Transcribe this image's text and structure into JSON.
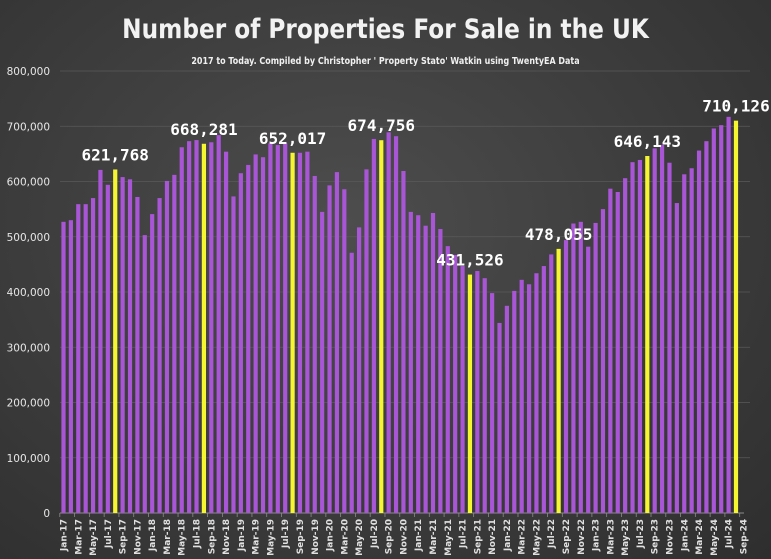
{
  "chart_data": {
    "type": "bar",
    "title": "Number of Properties For Sale in the UK",
    "subtitle": "2017 to Today. Compiled by Christopher ' Property Stato' Watkin using TwentyEA Data",
    "xlabel": "",
    "ylabel": "",
    "ylim": [
      0,
      800000
    ],
    "yticks": [
      "0",
      "100,000",
      "200,000",
      "300,000",
      "400,000",
      "500,000",
      "600,000",
      "700,000",
      "800,000"
    ],
    "ytick_values": [
      0,
      100000,
      200000,
      300000,
      400000,
      500000,
      600000,
      700000,
      800000
    ],
    "grid": true,
    "colors": {
      "default": "#a855d6",
      "highlight": "#f5f532"
    },
    "xtick_labels": [
      "Jan-17",
      "Mar-17",
      "May-17",
      "Jul-17",
      "Sep-17",
      "Nov-17",
      "Jan-18",
      "Mar-18",
      "May-18",
      "Jul-18",
      "Sep-18",
      "Nov-18",
      "Jan-19",
      "Mar-19",
      "May-19",
      "Jul-19",
      "Sep-19",
      "Nov-19",
      "Jan-20",
      "Mar-20",
      "May-20",
      "Jul-20",
      "Sep-20",
      "Nov-20",
      "Jan-21",
      "Mar-21",
      "May-21",
      "Jul-21",
      "Sep-21",
      "Nov-21",
      "Jan-22",
      "Mar-22",
      "May-22",
      "Jul-22",
      "Sep-22",
      "Nov-22",
      "Jan-23",
      "Mar-23",
      "May-23",
      "Jul-23",
      "Sep-23",
      "Nov-23",
      "Jan-24",
      "Mar-24",
      "May-24",
      "Jul-24",
      "Sep-24"
    ],
    "categories": [
      "Jan-17",
      "Feb-17",
      "Mar-17",
      "Apr-17",
      "May-17",
      "Jun-17",
      "Jul-17",
      "Aug-17",
      "Sep-17",
      "Oct-17",
      "Nov-17",
      "Dec-17",
      "Jan-18",
      "Feb-18",
      "Mar-18",
      "Apr-18",
      "May-18",
      "Jun-18",
      "Jul-18",
      "Aug-18",
      "Sep-18",
      "Oct-18",
      "Nov-18",
      "Dec-18",
      "Jan-19",
      "Feb-19",
      "Mar-19",
      "Apr-19",
      "May-19",
      "Jun-19",
      "Jul-19",
      "Aug-19",
      "Sep-19",
      "Oct-19",
      "Nov-19",
      "Dec-19",
      "Jan-20",
      "Feb-20",
      "Mar-20",
      "Apr-20",
      "May-20",
      "Jun-20",
      "Jul-20",
      "Aug-20",
      "Sep-20",
      "Oct-20",
      "Nov-20",
      "Dec-20",
      "Jan-21",
      "Feb-21",
      "Mar-21",
      "Apr-21",
      "May-21",
      "Jun-21",
      "Jul-21",
      "Aug-21",
      "Sep-21",
      "Oct-21",
      "Nov-21",
      "Dec-21",
      "Jan-22",
      "Feb-22",
      "Mar-22",
      "Apr-22",
      "May-22",
      "Jun-22",
      "Jul-22",
      "Aug-22",
      "Sep-22",
      "Oct-22",
      "Nov-22",
      "Dec-22",
      "Jan-23",
      "Feb-23",
      "Mar-23",
      "Apr-23",
      "May-23",
      "Jun-23",
      "Jul-23",
      "Aug-23",
      "Sep-23",
      "Oct-23",
      "Nov-23",
      "Dec-23",
      "Jan-24",
      "Feb-24",
      "Mar-24",
      "Apr-24",
      "May-24",
      "Jun-24",
      "Jul-24",
      "Aug-24"
    ],
    "values": [
      527000,
      530000,
      559000,
      559000,
      570000,
      621000,
      594000,
      621768,
      608000,
      604000,
      572000,
      503000,
      541000,
      570000,
      601000,
      612000,
      662000,
      673000,
      675000,
      668281,
      671000,
      684000,
      654000,
      573000,
      615000,
      630000,
      649000,
      644000,
      669000,
      666000,
      669000,
      652017,
      652000,
      654000,
      610000,
      545000,
      593000,
      617000,
      586000,
      471000,
      517000,
      622000,
      677000,
      674756,
      689000,
      682000,
      619000,
      545000,
      539000,
      520000,
      543000,
      514000,
      483000,
      467000,
      447000,
      431526,
      438000,
      425000,
      398000,
      344000,
      375000,
      402000,
      422000,
      414000,
      434000,
      447000,
      468000,
      478055,
      494000,
      524000,
      527000,
      482000,
      525000,
      550000,
      587000,
      581000,
      606000,
      635000,
      639000,
      646143,
      660000,
      666000,
      634000,
      561000,
      613000,
      624000,
      656000,
      673000,
      696000,
      702000,
      717000,
      710126
    ],
    "highlighted": [
      7,
      19,
      31,
      43,
      55,
      67,
      79,
      91
    ],
    "data_labels": [
      {
        "index": 7,
        "text": "621,768"
      },
      {
        "index": 19,
        "text": "668,281"
      },
      {
        "index": 31,
        "text": "652,017"
      },
      {
        "index": 43,
        "text": "674,756"
      },
      {
        "index": 55,
        "text": "431,526"
      },
      {
        "index": 67,
        "text": "478,055"
      },
      {
        "index": 79,
        "text": "646,143"
      },
      {
        "index": 91,
        "text": "710,126"
      }
    ]
  }
}
